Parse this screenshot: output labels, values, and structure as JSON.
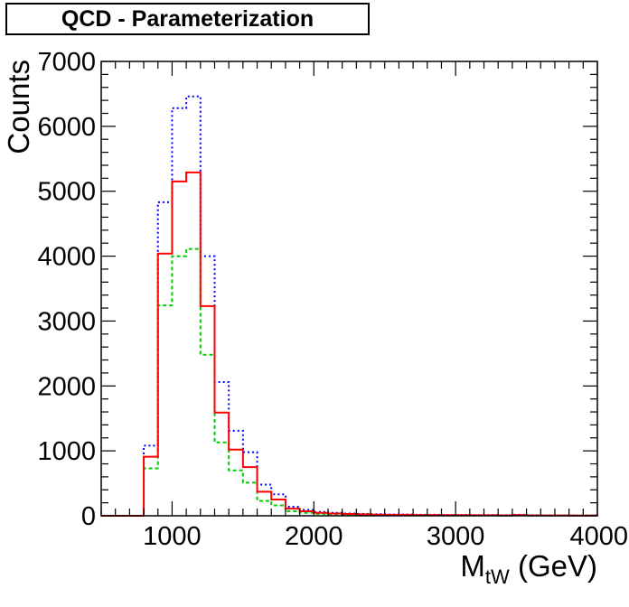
{
  "chart_data": {
    "type": "step-histogram",
    "title": "QCD - Parameterization",
    "xlabel": "M",
    "xlabel_sub": "tW",
    "xlabel_unit": " (GeV)",
    "ylabel": "Counts",
    "xlim": [
      500,
      4000
    ],
    "ylim": [
      0,
      7000
    ],
    "x_ticks": [
      1000,
      2000,
      3000,
      4000
    ],
    "y_ticks": [
      0,
      1000,
      2000,
      3000,
      4000,
      5000,
      6000,
      7000
    ],
    "bin_edges": [
      500,
      600,
      700,
      800,
      900,
      1000,
      1100,
      1200,
      1300,
      1400,
      1500,
      1600,
      1700,
      1800,
      1900,
      2000,
      2100,
      2200,
      2300,
      2400,
      2500,
      2600,
      2700,
      2800,
      2900,
      3000,
      3100,
      3200,
      3300,
      3400,
      3500,
      3600,
      3700,
      3800,
      3900,
      4000
    ],
    "series": [
      {
        "color": "#0000ff",
        "style": "dotted",
        "values": [
          0,
          0,
          0,
          1080,
          4830,
          6280,
          6460,
          4000,
          2060,
          1310,
          980,
          480,
          330,
          140,
          90,
          60,
          45,
          35,
          30,
          25,
          20,
          20,
          15,
          15,
          12,
          12,
          10,
          10,
          8,
          15,
          8,
          6,
          6,
          5,
          5
        ]
      },
      {
        "color": "#ff0000",
        "style": "solid",
        "values": [
          0,
          0,
          0,
          910,
          4040,
          5150,
          5290,
          3230,
          1590,
          1020,
          750,
          370,
          250,
          110,
          70,
          45,
          35,
          28,
          22,
          18,
          15,
          15,
          12,
          12,
          10,
          10,
          8,
          8,
          6,
          12,
          6,
          5,
          5,
          4,
          4
        ]
      },
      {
        "color": "#00cc00",
        "style": "dashed",
        "values": [
          0,
          0,
          0,
          730,
          3240,
          4000,
          4110,
          2480,
          1130,
          700,
          510,
          230,
          160,
          70,
          45,
          30,
          25,
          20,
          15,
          12,
          10,
          10,
          8,
          8,
          6,
          6,
          5,
          5,
          4,
          8,
          4,
          3,
          3,
          3,
          3
        ]
      }
    ]
  }
}
